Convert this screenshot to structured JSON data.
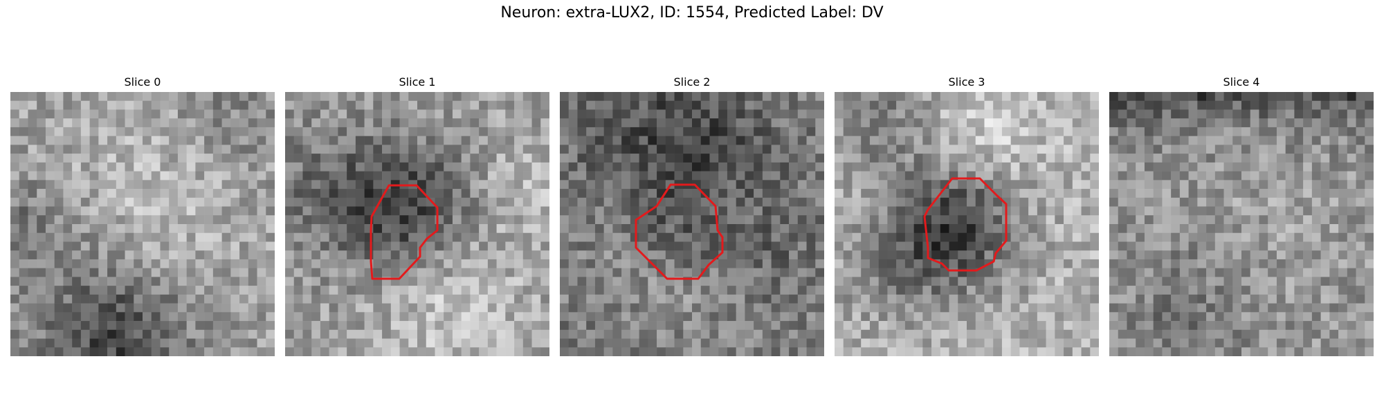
{
  "figure": {
    "title": "Neuron: extra-LUX2, ID: 1554, Predicted Label: DV"
  },
  "panels": [
    {
      "title": "Slice 0",
      "has_contour": false,
      "pattern": "bright-center-dark-bottom"
    },
    {
      "title": "Slice 1",
      "has_contour": true,
      "pattern": "dark-blob-center-left"
    },
    {
      "title": "Slice 2",
      "has_contour": true,
      "pattern": "dark-ring-center"
    },
    {
      "title": "Slice 3",
      "has_contour": true,
      "pattern": "dark-blob-center-bright-ring"
    },
    {
      "title": "Slice 4",
      "has_contour": false,
      "pattern": "noisy-dark-top"
    }
  ],
  "colors": {
    "contour": "#e31a1c",
    "background": "#ffffff"
  }
}
